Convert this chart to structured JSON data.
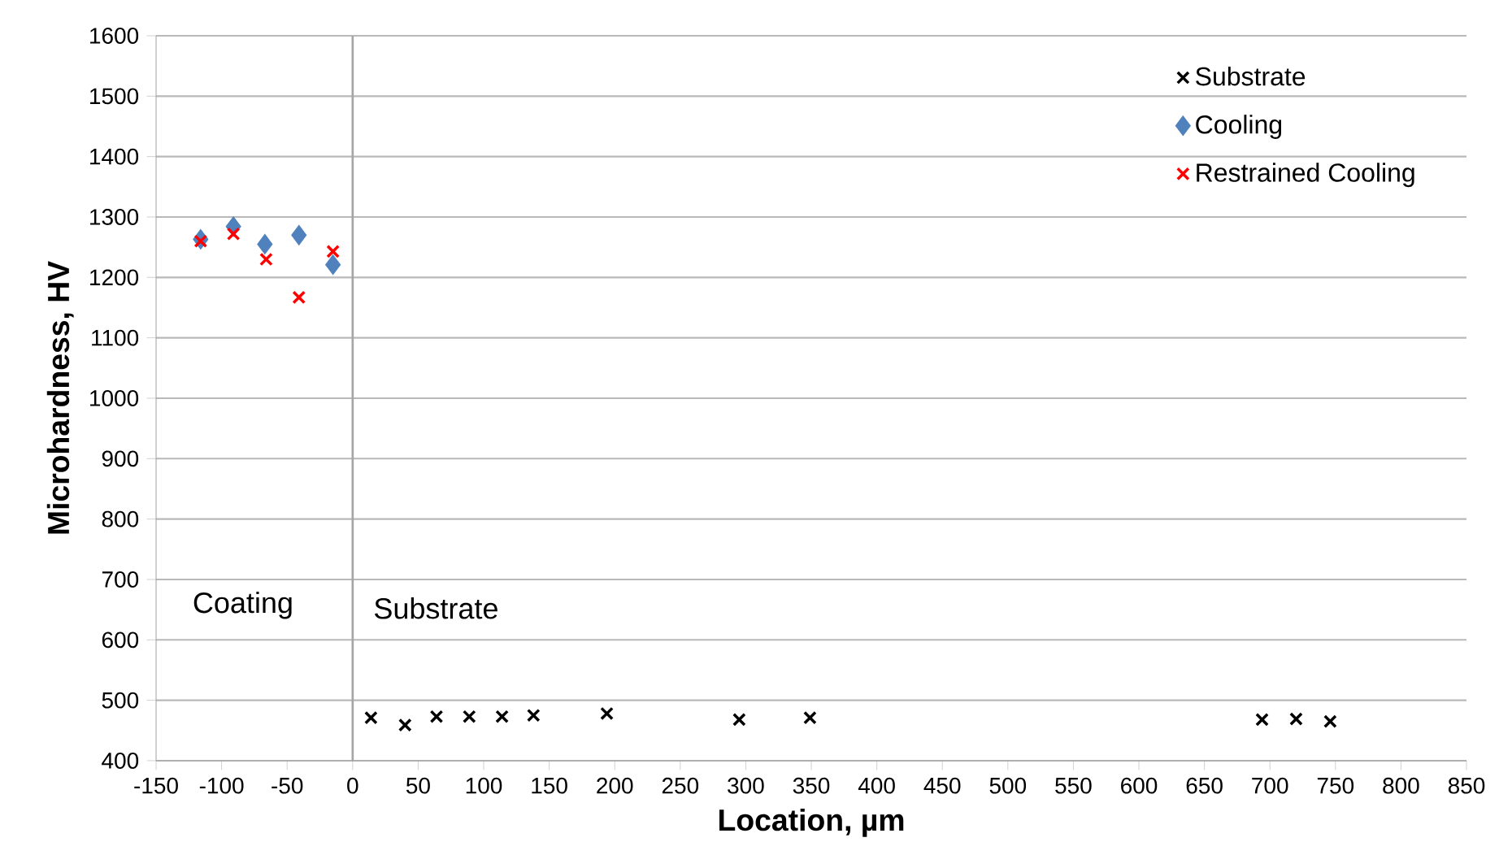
{
  "chart_data": {
    "type": "scatter",
    "xlabel": "Location, µm",
    "ylabel": "Microhardness, HV",
    "xlim": [
      -150,
      850
    ],
    "xticks": [
      -150,
      -100,
      -50,
      0,
      50,
      100,
      150,
      200,
      250,
      300,
      350,
      400,
      450,
      500,
      550,
      600,
      650,
      700,
      750,
      800,
      850
    ],
    "ylim": [
      400,
      1600
    ],
    "yticks": [
      400,
      500,
      600,
      700,
      800,
      900,
      1000,
      1100,
      1200,
      1300,
      1400,
      1500,
      1600
    ],
    "grid": "y",
    "legend": "top right",
    "series": [
      {
        "name": "Substrate",
        "color": "#000000",
        "marker": "cross",
        "x": [
          14,
          40,
          64,
          89,
          114,
          138,
          194,
          295,
          349,
          694,
          720,
          746
        ],
        "values": [
          471,
          459,
          473,
          473,
          473,
          475,
          478,
          468,
          471,
          468,
          469,
          465
        ]
      },
      {
        "name": "Cooling",
        "color": "#4f81bd",
        "marker": "diamond",
        "x": [
          -116,
          -91,
          -67,
          -41,
          -15
        ],
        "values": [
          1263,
          1284,
          1255,
          1270,
          1221
        ]
      },
      {
        "name": "Restrained Cooling",
        "color": "#ff0000",
        "marker": "cross",
        "x": [
          -116,
          -91,
          -66,
          -41,
          -15
        ],
        "values": [
          1260,
          1272,
          1230,
          1167,
          1243
        ]
      }
    ],
    "ref_lines": [
      {
        "axis": "x",
        "value": 0,
        "color": "#a6a6a6"
      }
    ],
    "annotations": [
      "Coating",
      "Substrate"
    ]
  }
}
